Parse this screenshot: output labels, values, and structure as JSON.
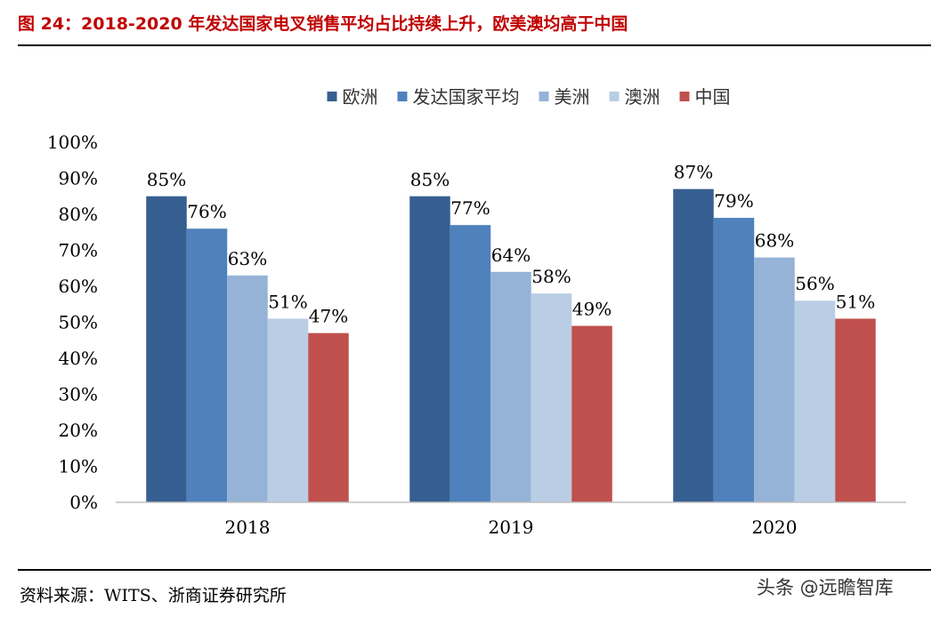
{
  "header": {
    "title": "图 24：2018-2020 年发达国家电叉销售平均占比持续上升，欧美澳均高于中国"
  },
  "footer": {
    "source": "资料来源：WITS、浙商证券研究所",
    "watermark": "头条 @远瞻智库"
  },
  "chart_data": {
    "type": "bar",
    "title": "",
    "xlabel": "",
    "ylabel": "",
    "categories": [
      "2018",
      "2019",
      "2020"
    ],
    "series": [
      {
        "name": "欧洲",
        "color": "#365f91",
        "values": [
          85,
          85,
          87
        ],
        "labels": [
          "85%",
          "85%",
          "87%"
        ]
      },
      {
        "name": "发达国家平均",
        "color": "#4f81bd",
        "values": [
          76,
          77,
          79
        ],
        "labels": [
          "76%",
          "77%",
          "79%"
        ]
      },
      {
        "name": "美洲",
        "color": "#95b3d7",
        "values": [
          63,
          64,
          68
        ],
        "labels": [
          "63%",
          "64%",
          "68%"
        ]
      },
      {
        "name": "澳洲",
        "color": "#b9cde5",
        "values": [
          51,
          58,
          56
        ],
        "labels": [
          "51%",
          "58%",
          "56%"
        ]
      },
      {
        "name": "中国",
        "color": "#c0504d",
        "values": [
          47,
          49,
          51
        ],
        "labels": [
          "47%",
          "49%",
          "51%"
        ]
      }
    ],
    "ylim": [
      0,
      100
    ],
    "yticks": [
      0,
      10,
      20,
      30,
      40,
      50,
      60,
      70,
      80,
      90,
      100
    ],
    "ytick_labels": [
      "0%",
      "10%",
      "20%",
      "30%",
      "40%",
      "50%",
      "60%",
      "70%",
      "80%",
      "90%",
      "100%"
    ],
    "grid": false,
    "legend_position": "top"
  }
}
